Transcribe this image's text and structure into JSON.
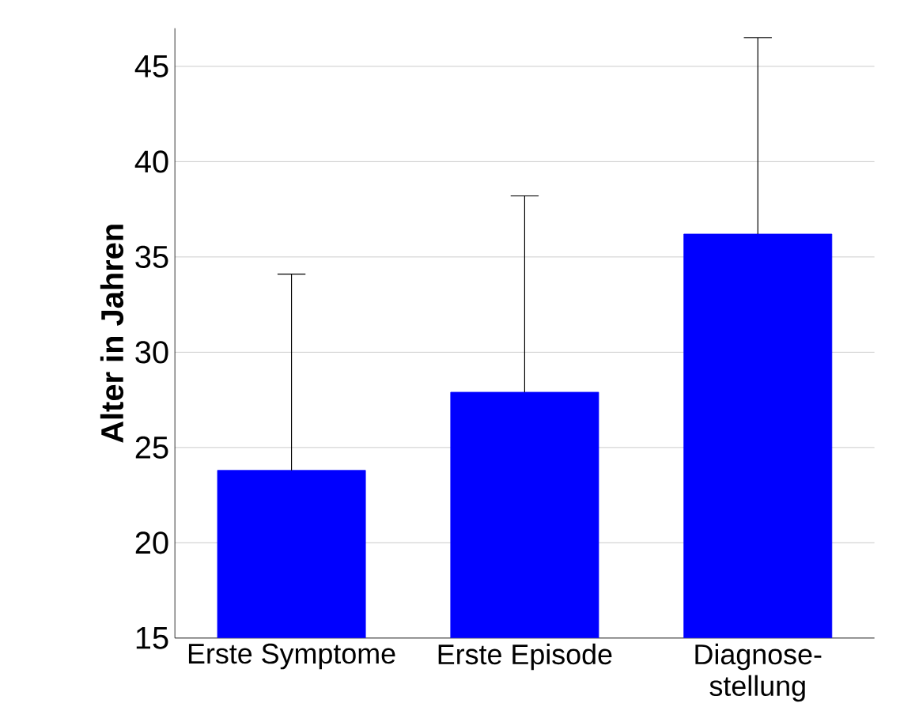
{
  "chart_data": {
    "type": "bar",
    "ylabel": "Alter in Jahren",
    "categories": [
      "Erste Symptome",
      "Erste Episode",
      "Diagnose-stellung"
    ],
    "values": [
      23.8,
      27.9,
      36.2
    ],
    "errors": [
      [
        23.8,
        34.1
      ],
      [
        27.9,
        38.2
      ],
      [
        36.2,
        46.5
      ]
    ],
    "color": "#0000ff",
    "ylim": [
      15,
      47
    ],
    "yticks": [
      15,
      20,
      25,
      30,
      35,
      40,
      45
    ],
    "grid": "y"
  }
}
